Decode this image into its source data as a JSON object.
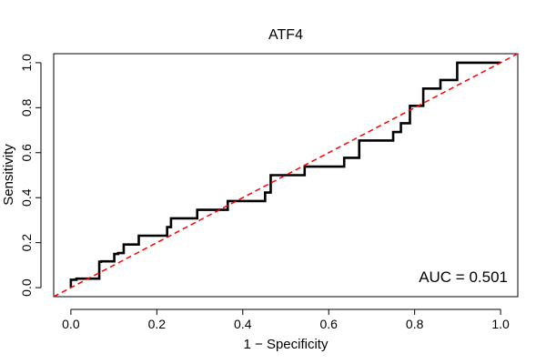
{
  "chart_data": {
    "type": "line",
    "title": "ATF4",
    "xlabel": "1 − Specificity",
    "ylabel": "Sensitivity",
    "xlim": [
      -0.04,
      1.04
    ],
    "ylim": [
      -0.04,
      1.04
    ],
    "xticks": [
      0.0,
      0.2,
      0.4,
      0.6,
      0.8,
      1.0
    ],
    "yticks": [
      0.0,
      0.2,
      0.4,
      0.6,
      0.8,
      1.0
    ],
    "xtick_labels": [
      "0.0",
      "0.2",
      "0.4",
      "0.6",
      "0.8",
      "1.0"
    ],
    "ytick_labels": [
      "0.0",
      "0.2",
      "0.4",
      "0.6",
      "0.8",
      "1.0"
    ],
    "annotation": "AUC = 0.501",
    "grid": false,
    "series": [
      {
        "color": "#000000",
        "style": "solid",
        "x": [
          0.0,
          0.0,
          0.013,
          0.013,
          0.066,
          0.066,
          0.07,
          0.07,
          0.101,
          0.101,
          0.11,
          0.11,
          0.123,
          0.123,
          0.158,
          0.158,
          0.224,
          0.224,
          0.233,
          0.233,
          0.294,
          0.294,
          0.365,
          0.365,
          0.452,
          0.452,
          0.465,
          0.465,
          0.544,
          0.544,
          0.636,
          0.636,
          0.671,
          0.671,
          0.75,
          0.75,
          0.768,
          0.768,
          0.789,
          0.789,
          0.82,
          0.82,
          0.86,
          0.86,
          0.899,
          0.899,
          1.0
        ],
        "y": [
          0.0,
          0.035,
          0.035,
          0.04,
          0.04,
          0.115,
          0.115,
          0.117,
          0.117,
          0.15,
          0.15,
          0.154,
          0.154,
          0.192,
          0.192,
          0.231,
          0.231,
          0.269,
          0.269,
          0.308,
          0.308,
          0.346,
          0.346,
          0.385,
          0.385,
          0.423,
          0.423,
          0.5,
          0.5,
          0.538,
          0.538,
          0.577,
          0.577,
          0.654,
          0.654,
          0.692,
          0.692,
          0.731,
          0.731,
          0.808,
          0.808,
          0.885,
          0.885,
          0.923,
          0.923,
          1.0,
          1.0
        ]
      },
      {
        "color": "#ff0000",
        "style": "dashed",
        "x": [
          -0.04,
          1.04
        ],
        "y": [
          -0.04,
          1.04
        ]
      }
    ]
  }
}
